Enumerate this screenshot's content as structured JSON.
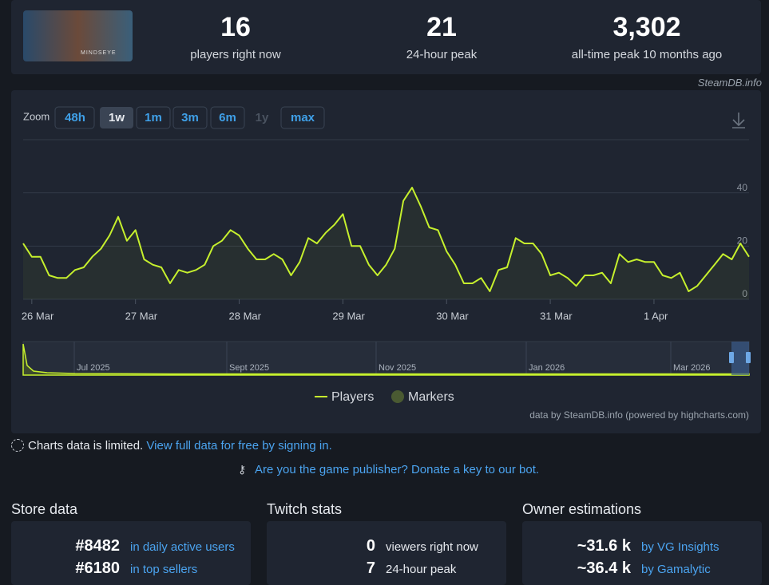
{
  "header": {
    "stats": [
      {
        "value": "16",
        "label": "players right now"
      },
      {
        "value": "21",
        "label": "24-hour peak"
      },
      {
        "value": "3,302",
        "label": "all-time peak 10 months ago"
      }
    ],
    "watermark": "SteamDB.info",
    "thumb_text": "MINDSEYE"
  },
  "chart": {
    "zoom_label": "Zoom",
    "buttons": [
      "48h",
      "1w",
      "1m",
      "3m",
      "6m",
      "1y",
      "max"
    ],
    "navigator": {
      "labels": [
        "Jul 2025",
        "Sept 2025",
        "Nov 2025",
        "Jan 2026",
        "Mar 2026"
      ]
    },
    "legend_markers": "Markers",
    "credit": "data by SteamDB.info (powered by highcharts.com)"
  },
  "chart_data": {
    "type": "line",
    "grid": true,
    "ylim": [
      0,
      60
    ],
    "yticks": [
      0,
      20,
      40
    ],
    "categories": [
      null,
      "26 Mar",
      null,
      null,
      null,
      null,
      null,
      null,
      null,
      null,
      null,
      null,
      null,
      "27 Mar",
      null,
      null,
      null,
      null,
      null,
      null,
      null,
      null,
      null,
      null,
      null,
      "28 Mar",
      null,
      null,
      null,
      null,
      null,
      null,
      null,
      null,
      null,
      null,
      null,
      "29 Mar",
      null,
      null,
      null,
      null,
      null,
      null,
      null,
      null,
      null,
      null,
      null,
      "30 Mar",
      null,
      null,
      null,
      null,
      null,
      null,
      null,
      null,
      null,
      null,
      null,
      "31 Mar",
      null,
      null,
      null,
      null,
      null,
      null,
      null,
      null,
      null,
      null,
      null,
      "1 Apr",
      null,
      null,
      null,
      null,
      null,
      null,
      null,
      null,
      null,
      null,
      null
    ],
    "series": [
      {
        "name": "Players",
        "color": "#c6f02d",
        "values": [
          21,
          16,
          16,
          9,
          8,
          8,
          11,
          12,
          16,
          19,
          24,
          31,
          22,
          26,
          15,
          13,
          12,
          6,
          11,
          10,
          11,
          13,
          20,
          22,
          26,
          24,
          19,
          15,
          15,
          17,
          15,
          9,
          14,
          23,
          21,
          25,
          28,
          32,
          20,
          20,
          13,
          9,
          13,
          19,
          37,
          42,
          35,
          27,
          26,
          18,
          13,
          6,
          6,
          8,
          3,
          11,
          12,
          23,
          21,
          21,
          17,
          9,
          10,
          8,
          5,
          9,
          9,
          10,
          6,
          17,
          14,
          15,
          14,
          14,
          9,
          8,
          10,
          3,
          5,
          9,
          13,
          17,
          15,
          21,
          16
        ]
      }
    ]
  },
  "notice": {
    "text": "Charts data is limited.",
    "link": "View full data for free by signing in."
  },
  "publisher": {
    "link": "Are you the game publisher? Donate a key to our bot."
  },
  "sections": [
    {
      "title": "Store data",
      "rows": [
        {
          "value": "#8482",
          "label": "in daily active users"
        },
        {
          "value": "#6180",
          "label": "in top sellers"
        }
      ]
    },
    {
      "title": "Twitch stats",
      "rows": [
        {
          "value": "0",
          "label": "viewers right now"
        },
        {
          "value": "7",
          "label": "24-hour peak"
        }
      ]
    },
    {
      "title": "Owner estimations",
      "rows": [
        {
          "value": "~31.6 k",
          "label": "by VG Insights"
        },
        {
          "value": "~36.4 k",
          "label": "by Gamalytic"
        }
      ]
    }
  ]
}
